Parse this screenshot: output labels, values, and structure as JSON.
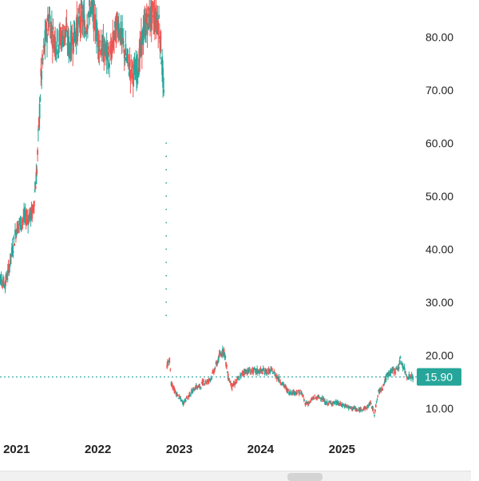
{
  "chart_data": {
    "type": "candlestick",
    "title": "",
    "xlabel": "",
    "ylabel": "",
    "ylim": [
      5,
      87
    ],
    "y_ticks": [
      "10.00",
      "20.00",
      "30.00",
      "40.00",
      "50.00",
      "60.00",
      "70.00",
      "80.00"
    ],
    "x_ticks": [
      "2021",
      "2022",
      "2023",
      "2024",
      "2025"
    ],
    "current_price": "15.90",
    "colors": {
      "up": "#26a69a",
      "down": "#ef5350",
      "dotted": "#26a69a",
      "badge": "#26a69a"
    },
    "series": [
      {
        "values": [
          [
            2020.75,
            35
          ],
          [
            2020.82,
            34
          ],
          [
            2020.86,
            33.5
          ],
          [
            2020.9,
            36
          ],
          [
            2020.95,
            40
          ],
          [
            2021.0,
            44
          ],
          [
            2021.05,
            45
          ],
          [
            2021.1,
            46
          ],
          [
            2021.15,
            46
          ],
          [
            2021.2,
            47
          ],
          [
            2021.25,
            55
          ],
          [
            2021.3,
            72
          ],
          [
            2021.35,
            79
          ],
          [
            2021.4,
            84
          ],
          [
            2021.45,
            80
          ],
          [
            2021.5,
            79
          ],
          [
            2021.55,
            80
          ],
          [
            2021.6,
            81
          ],
          [
            2021.65,
            78
          ],
          [
            2021.7,
            80
          ],
          [
            2021.8,
            84
          ],
          [
            2021.85,
            82
          ],
          [
            2021.9,
            86
          ],
          [
            2021.95,
            84
          ],
          [
            2022.0,
            80
          ],
          [
            2022.05,
            78
          ],
          [
            2022.1,
            77
          ],
          [
            2022.15,
            76
          ],
          [
            2022.2,
            80
          ],
          [
            2022.25,
            83
          ],
          [
            2022.3,
            79
          ],
          [
            2022.35,
            76
          ],
          [
            2022.4,
            74
          ],
          [
            2022.45,
            73
          ],
          [
            2022.5,
            75
          ],
          [
            2022.55,
            80
          ],
          [
            2022.6,
            83
          ],
          [
            2022.65,
            84
          ],
          [
            2022.7,
            84
          ],
          [
            2022.75,
            83
          ],
          [
            2022.78,
            77
          ],
          [
            2022.8,
            72
          ],
          [
            2022.82,
            65
          ],
          [
            2022.85,
            18
          ],
          [
            2022.88,
            19
          ],
          [
            2022.9,
            15
          ],
          [
            2022.95,
            13
          ],
          [
            2023.0,
            12
          ],
          [
            2023.05,
            11
          ],
          [
            2023.1,
            12
          ],
          [
            2023.15,
            13
          ],
          [
            2023.2,
            14
          ],
          [
            2023.25,
            14
          ],
          [
            2023.3,
            15
          ],
          [
            2023.35,
            15
          ],
          [
            2023.4,
            16
          ],
          [
            2023.45,
            18
          ],
          [
            2023.5,
            20
          ],
          [
            2023.55,
            21
          ],
          [
            2023.6,
            16
          ],
          [
            2023.65,
            14
          ],
          [
            2023.7,
            15
          ],
          [
            2023.75,
            16
          ],
          [
            2023.8,
            17
          ],
          [
            2023.85,
            17
          ],
          [
            2023.9,
            17
          ],
          [
            2023.95,
            17
          ],
          [
            2024.0,
            17
          ],
          [
            2024.05,
            17
          ],
          [
            2024.1,
            17
          ],
          [
            2024.15,
            17
          ],
          [
            2024.2,
            16
          ],
          [
            2024.25,
            15
          ],
          [
            2024.3,
            14
          ],
          [
            2024.35,
            13
          ],
          [
            2024.4,
            13
          ],
          [
            2024.45,
            13
          ],
          [
            2024.5,
            13
          ],
          [
            2024.55,
            11
          ],
          [
            2024.6,
            11
          ],
          [
            2024.65,
            12
          ],
          [
            2024.7,
            12
          ],
          [
            2024.75,
            12
          ],
          [
            2024.8,
            11
          ],
          [
            2024.85,
            11
          ],
          [
            2024.9,
            11
          ],
          [
            2024.95,
            11
          ],
          [
            2025.0,
            10.5
          ],
          [
            2025.05,
            10.5
          ],
          [
            2025.1,
            10
          ],
          [
            2025.15,
            10
          ],
          [
            2025.2,
            9.5
          ],
          [
            2025.25,
            10
          ],
          [
            2025.3,
            10
          ],
          [
            2025.35,
            11
          ],
          [
            2025.4,
            9
          ],
          [
            2025.45,
            13
          ],
          [
            2025.5,
            14
          ],
          [
            2025.55,
            16
          ],
          [
            2025.6,
            17
          ],
          [
            2025.65,
            17
          ],
          [
            2025.7,
            18
          ],
          [
            2025.72,
            19
          ],
          [
            2025.75,
            18
          ],
          [
            2025.8,
            16
          ],
          [
            2025.85,
            16
          ],
          [
            2025.88,
            15.9
          ]
        ]
      }
    ]
  }
}
